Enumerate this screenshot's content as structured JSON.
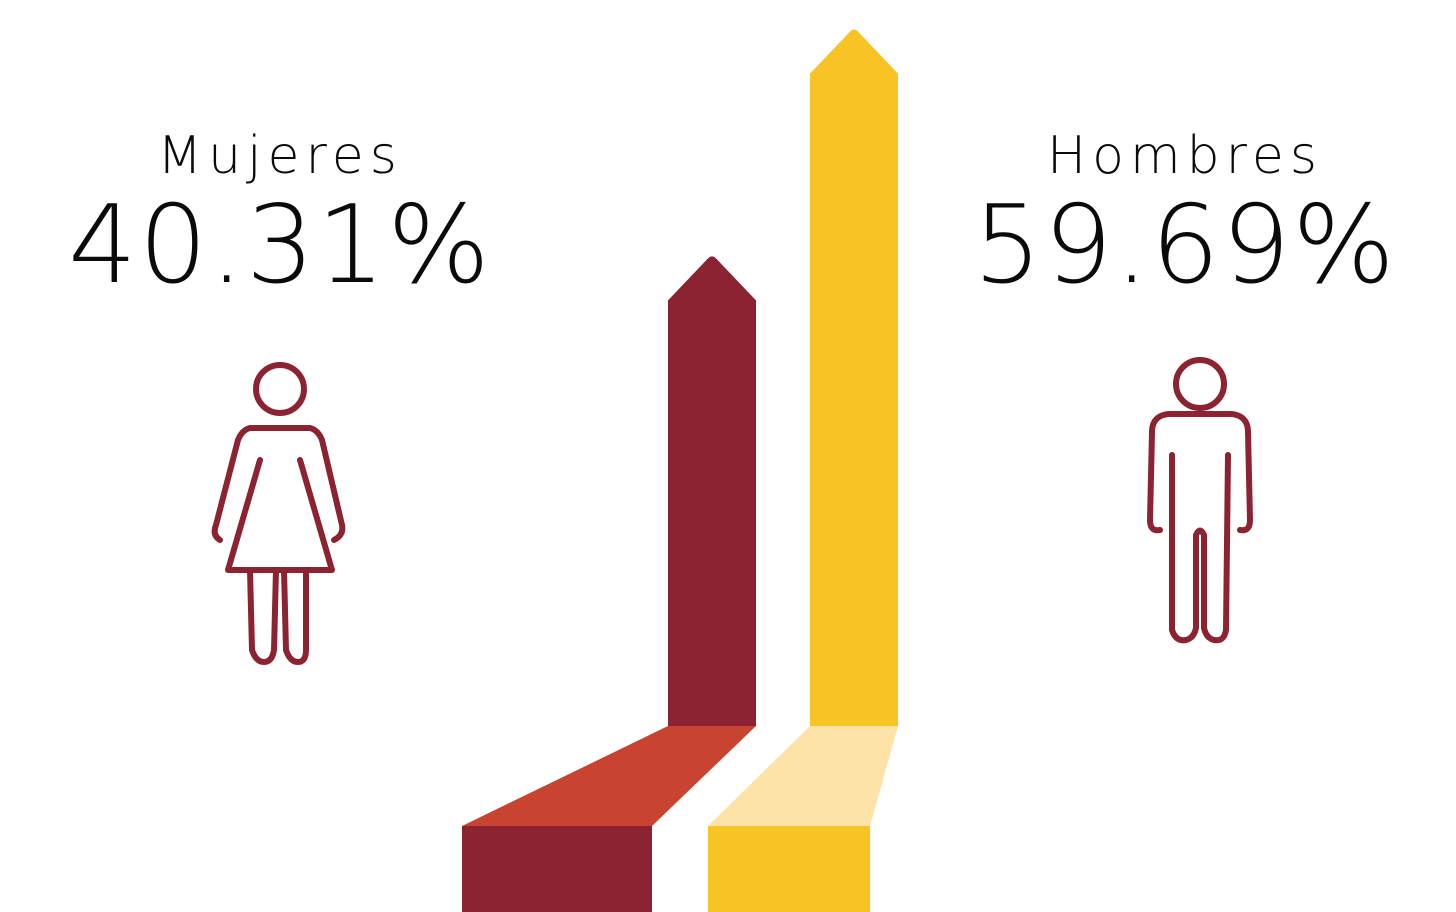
{
  "chart_data": {
    "type": "bar",
    "categories": [
      "Mujeres",
      "Hombres"
    ],
    "values": [
      40.31,
      59.69
    ],
    "value_labels": [
      "40.31%",
      "59.69%"
    ],
    "colors": {
      "Mujeres": {
        "bar": "#8B2332",
        "ramp": "#C84430"
      },
      "Hombres": {
        "bar": "#F8C324",
        "ramp": "#FDE3A8"
      }
    },
    "icon_color": "#8B2332",
    "icons": [
      "woman-icon",
      "man-icon"
    ],
    "ylim": [
      0,
      100
    ],
    "grid": false,
    "legend": "none"
  }
}
